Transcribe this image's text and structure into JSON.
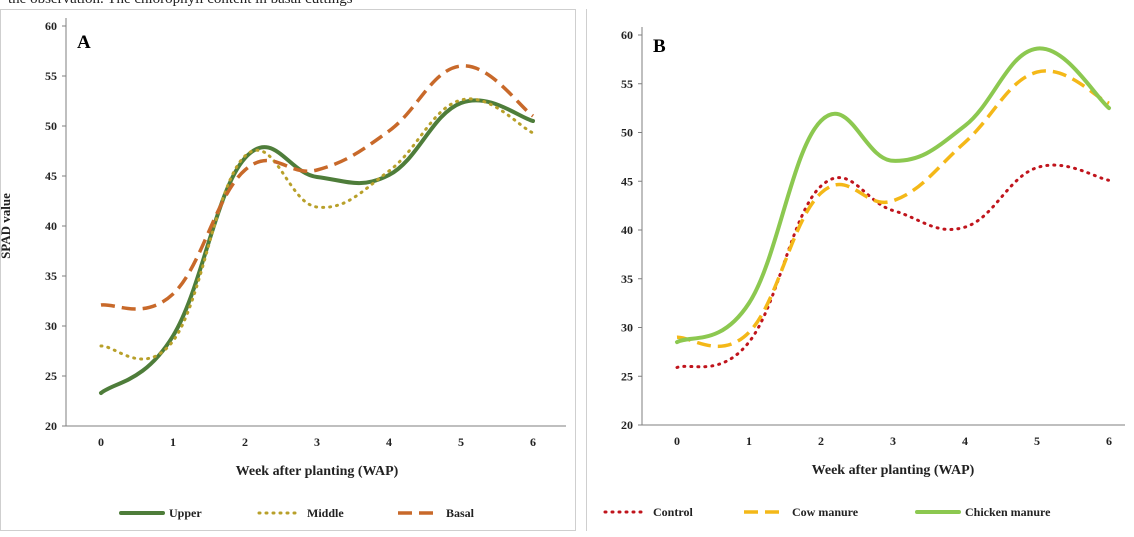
{
  "top_text": "the observation. The chlorophyll content in basal cuttings",
  "chart_data": [
    {
      "type": "line",
      "panel_label": "A",
      "xlabel": "Week after planting (WAP)",
      "ylabel": "SPAD value",
      "x": [
        0,
        1,
        2,
        3,
        4,
        5,
        6
      ],
      "xlim": [
        0,
        6
      ],
      "ylim": [
        20,
        60
      ],
      "yticks": [
        20,
        25,
        30,
        35,
        40,
        45,
        50,
        55,
        60
      ],
      "legend_position": "bottom",
      "series": [
        {
          "name": "Upper",
          "values": [
            23.3,
            29.0,
            46.8,
            44.9,
            45.1,
            52.3,
            50.5
          ],
          "color": "#4e7d3a",
          "style": "solid"
        },
        {
          "name": "Middle",
          "values": [
            28.0,
            28.5,
            47.0,
            41.9,
            45.5,
            52.6,
            49.3
          ],
          "color": "#b8a02a",
          "style": "dotted"
        },
        {
          "name": "Basal",
          "values": [
            32.1,
            33.2,
            45.6,
            45.6,
            49.5,
            56.0,
            51.0
          ],
          "color": "#c8692a",
          "style": "dashed"
        }
      ]
    },
    {
      "type": "line",
      "panel_label": "B",
      "xlabel": "Week after planting (WAP)",
      "ylabel": "SPAD value",
      "x": [
        0,
        1,
        2,
        3,
        4,
        5,
        6
      ],
      "xlim": [
        0,
        6
      ],
      "ylim": [
        20,
        60
      ],
      "yticks": [
        20,
        25,
        30,
        35,
        40,
        45,
        50,
        55,
        60
      ],
      "legend_position": "bottom",
      "series": [
        {
          "name": "Control",
          "values": [
            25.9,
            28.5,
            44.5,
            42.0,
            40.3,
            46.4,
            45.1
          ],
          "color": "#c0141c",
          "style": "dotted"
        },
        {
          "name": "Cow manure",
          "values": [
            29.0,
            29.5,
            43.8,
            43.0,
            49.0,
            56.2,
            53.0
          ],
          "color": "#f4b818",
          "style": "dashed"
        },
        {
          "name": "Chicken manure",
          "values": [
            28.5,
            32.5,
            51.2,
            47.1,
            50.7,
            58.6,
            52.5
          ],
          "color": "#8cc850",
          "style": "solid"
        }
      ]
    }
  ]
}
